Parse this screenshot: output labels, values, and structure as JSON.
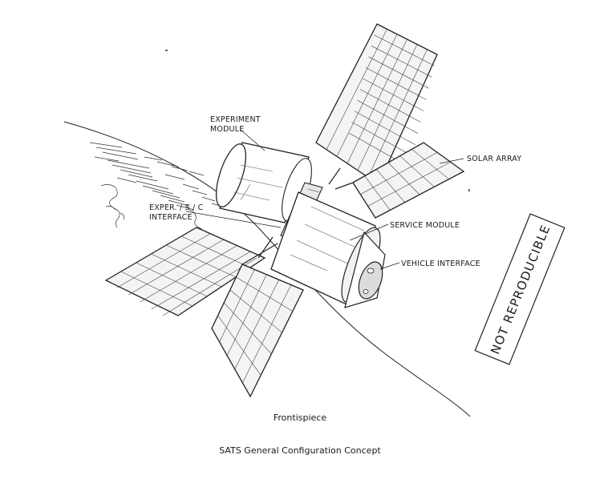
{
  "labels": {
    "experiment_module_line1": "EXPERIMENT",
    "experiment_module_line2": "MODULE",
    "solar_array": "SOLAR ARRAY",
    "exper_sc_line1": "EXPER. / S / C",
    "exper_sc_line2": "INTERFACE",
    "service_module": "SERVICE MODULE",
    "vehicle_interface": "VEHICLE INTERFACE"
  },
  "stamp": {
    "text": "NOT REPRODUCIBLE"
  },
  "captions": {
    "frontispiece": "Frontispiece",
    "title": "SATS General Configuration Concept"
  }
}
